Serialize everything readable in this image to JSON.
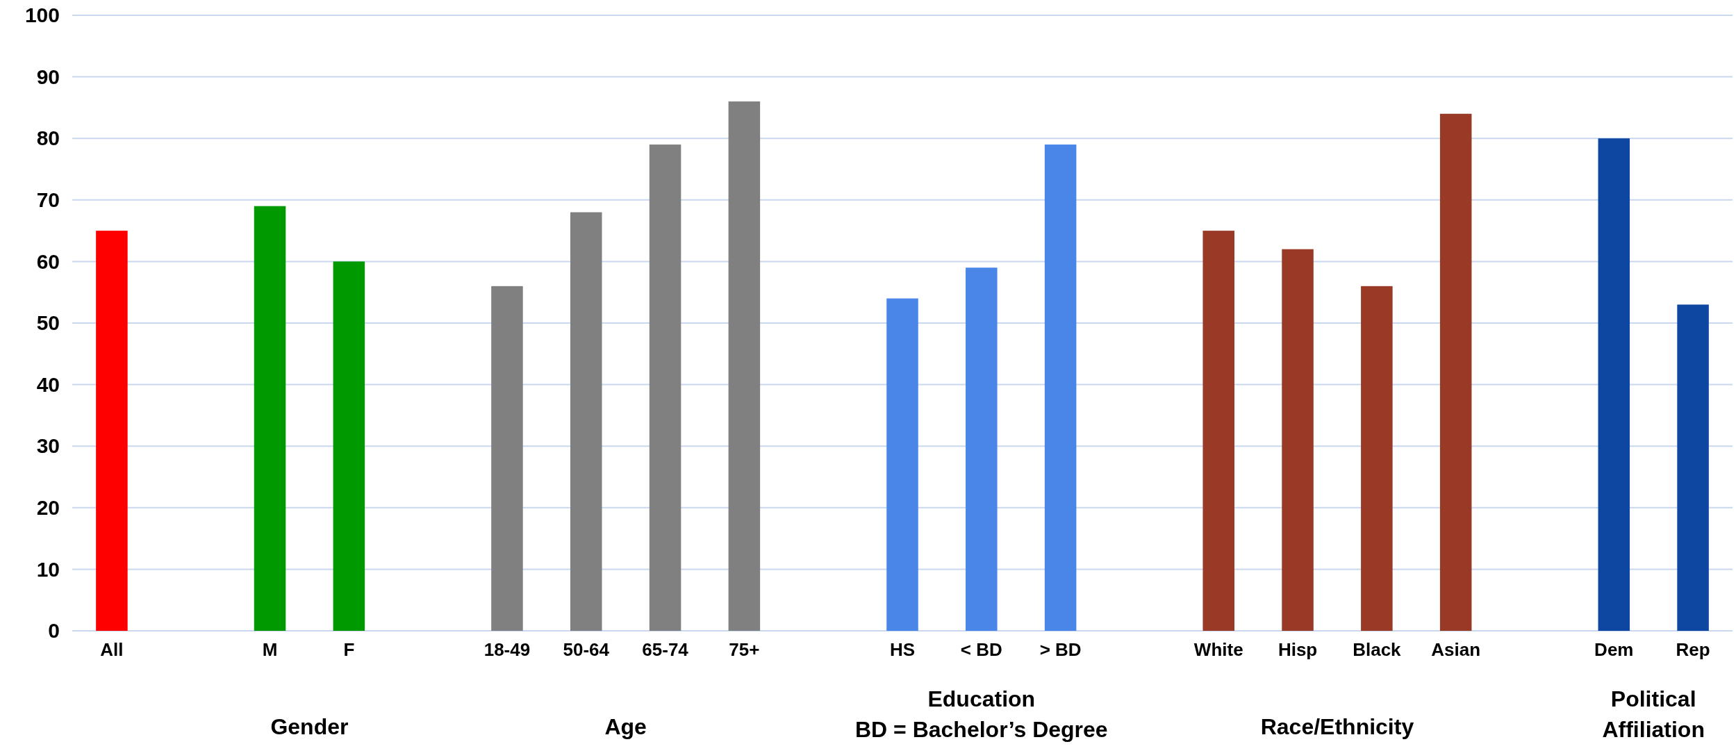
{
  "chart_data": {
    "type": "bar",
    "categories": [
      "All",
      null,
      "M",
      "F",
      null,
      "18-49",
      "50-64",
      "65-74",
      "75+",
      null,
      "HS",
      "< BD",
      "> BD",
      null,
      "White",
      "Hisp",
      "Black",
      "Asian",
      null,
      "Dem",
      "Rep"
    ],
    "values": [
      65,
      null,
      69,
      60,
      null,
      56,
      68,
      79,
      86,
      null,
      54,
      59,
      79,
      null,
      65,
      62,
      56,
      84,
      null,
      80,
      53
    ],
    "colors": [
      "#ff0000",
      null,
      "#009900",
      "#009900",
      null,
      "#808080",
      "#808080",
      "#808080",
      "#808080",
      null,
      "#4a86e8",
      "#4a86e8",
      "#4a86e8",
      null,
      "#983a26",
      "#983a26",
      "#983a26",
      "#983a26",
      null,
      "#0d47a1",
      "#0d47a1"
    ],
    "ylim": [
      0,
      100
    ],
    "yticks": [
      0,
      10,
      20,
      30,
      40,
      50,
      60,
      70,
      80,
      90,
      100
    ],
    "grid": "y",
    "annotations": [
      "Gender",
      "Age",
      "Education\nBD = Bachelor’s Degree",
      "Race/Ethnicity",
      "Political\nAffiliation"
    ]
  }
}
